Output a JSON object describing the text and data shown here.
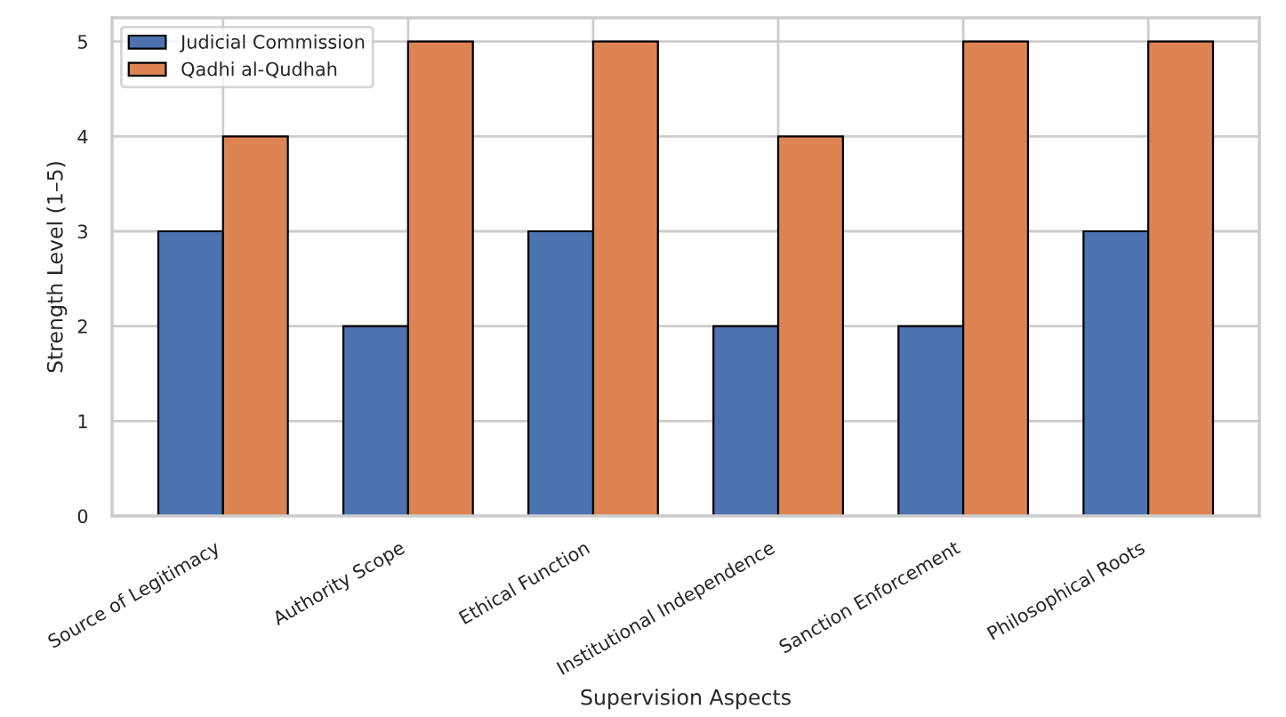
{
  "chart_data": {
    "type": "bar",
    "xlabel": "Supervision Aspects",
    "ylabel": "Strength Level (1–5)",
    "categories": [
      "Source of Legitimacy",
      "Authority Scope",
      "Ethical Function",
      "Institutional Independence",
      "Sanction Enforcement",
      "Philosophical Roots"
    ],
    "series": [
      {
        "name": "Judicial Commission",
        "color": "#4c72b0",
        "values": [
          3,
          2,
          3,
          2,
          2,
          3
        ]
      },
      {
        "name": "Qadhi al-Qudhah",
        "color": "#dd8452",
        "values": [
          4,
          5,
          5,
          4,
          5,
          5
        ]
      }
    ],
    "ylim": [
      0,
      5.25
    ],
    "yticks": [
      0,
      1,
      2,
      3,
      4,
      5
    ],
    "grid": true,
    "legend": "top left"
  }
}
